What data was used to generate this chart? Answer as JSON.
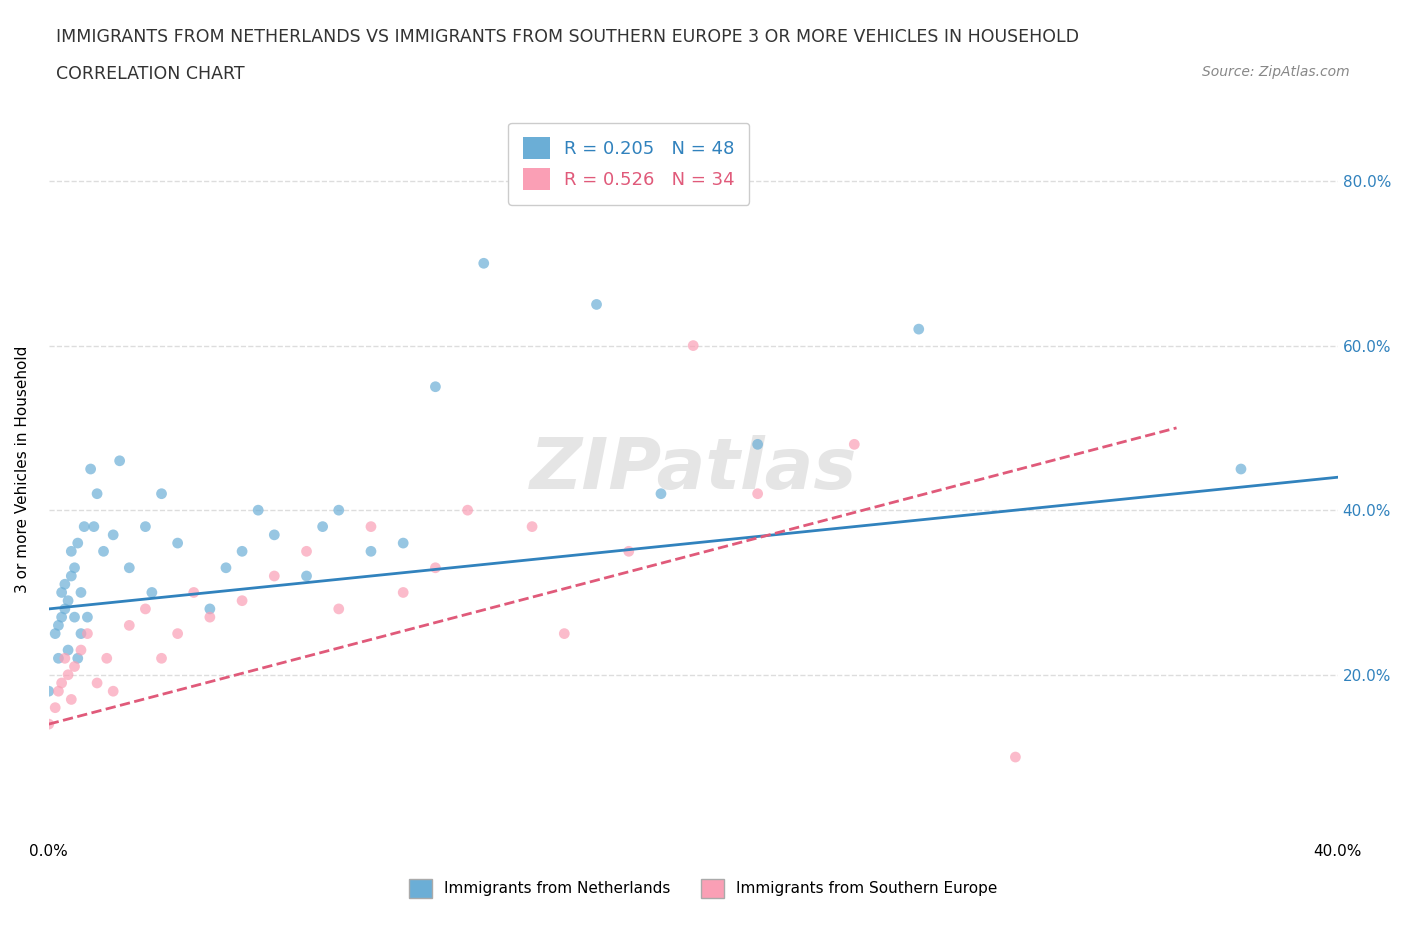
{
  "title_line1": "IMMIGRANTS FROM NETHERLANDS VS IMMIGRANTS FROM SOUTHERN EUROPE 3 OR MORE VEHICLES IN HOUSEHOLD",
  "title_line2": "CORRELATION CHART",
  "source_text": "Source: ZipAtlas.com",
  "ylabel": "3 or more Vehicles in Household",
  "xlim": [
    0.0,
    0.4
  ],
  "ylim": [
    0.0,
    0.9
  ],
  "x_ticks": [
    0.0,
    0.05,
    0.1,
    0.15,
    0.2,
    0.25,
    0.3,
    0.35,
    0.4
  ],
  "x_tick_labels": [
    "0.0%",
    "",
    "",
    "",
    "",
    "",
    "",
    "",
    "40.0%"
  ],
  "y_ticks": [
    0.0,
    0.2,
    0.4,
    0.6,
    0.8
  ],
  "y_tick_labels_right": [
    "",
    "20.0%",
    "40.0%",
    "60.0%",
    "80.0%"
  ],
  "blue_color": "#6baed6",
  "pink_color": "#fa9fb5",
  "blue_line_color": "#3182bd",
  "pink_line_color": "#e05a7a",
  "watermark_color": "#cccccc",
  "legend_R_blue": "R = 0.205",
  "legend_N_blue": "N = 48",
  "legend_R_pink": "R = 0.526",
  "legend_N_pink": "N = 34",
  "blue_scatter_x": [
    0.0,
    0.002,
    0.003,
    0.003,
    0.004,
    0.004,
    0.005,
    0.005,
    0.006,
    0.006,
    0.007,
    0.007,
    0.008,
    0.008,
    0.009,
    0.009,
    0.01,
    0.01,
    0.011,
    0.012,
    0.013,
    0.014,
    0.015,
    0.017,
    0.02,
    0.022,
    0.025,
    0.03,
    0.032,
    0.035,
    0.04,
    0.05,
    0.055,
    0.06,
    0.065,
    0.07,
    0.08,
    0.085,
    0.09,
    0.1,
    0.11,
    0.12,
    0.135,
    0.17,
    0.19,
    0.22,
    0.27,
    0.37
  ],
  "blue_scatter_y": [
    0.18,
    0.25,
    0.22,
    0.26,
    0.27,
    0.3,
    0.28,
    0.31,
    0.23,
    0.29,
    0.32,
    0.35,
    0.27,
    0.33,
    0.22,
    0.36,
    0.25,
    0.3,
    0.38,
    0.27,
    0.45,
    0.38,
    0.42,
    0.35,
    0.37,
    0.46,
    0.33,
    0.38,
    0.3,
    0.42,
    0.36,
    0.28,
    0.33,
    0.35,
    0.4,
    0.37,
    0.32,
    0.38,
    0.4,
    0.35,
    0.36,
    0.55,
    0.7,
    0.65,
    0.42,
    0.48,
    0.62,
    0.45
  ],
  "pink_scatter_x": [
    0.0,
    0.002,
    0.003,
    0.004,
    0.005,
    0.006,
    0.007,
    0.008,
    0.01,
    0.012,
    0.015,
    0.018,
    0.02,
    0.025,
    0.03,
    0.035,
    0.04,
    0.045,
    0.05,
    0.06,
    0.07,
    0.08,
    0.09,
    0.1,
    0.11,
    0.12,
    0.13,
    0.15,
    0.16,
    0.18,
    0.2,
    0.22,
    0.25,
    0.3
  ],
  "pink_scatter_y": [
    0.14,
    0.16,
    0.18,
    0.19,
    0.22,
    0.2,
    0.17,
    0.21,
    0.23,
    0.25,
    0.19,
    0.22,
    0.18,
    0.26,
    0.28,
    0.22,
    0.25,
    0.3,
    0.27,
    0.29,
    0.32,
    0.35,
    0.28,
    0.38,
    0.3,
    0.33,
    0.4,
    0.38,
    0.25,
    0.35,
    0.6,
    0.42,
    0.48,
    0.1
  ],
  "blue_trend_x": [
    0.0,
    0.4
  ],
  "blue_trend_y": [
    0.28,
    0.44
  ],
  "pink_trend_x": [
    0.0,
    0.35
  ],
  "pink_trend_y": [
    0.14,
    0.5
  ],
  "grid_color": "#dddddd",
  "bg_color": "#ffffff",
  "hline_y": [
    0.2,
    0.4,
    0.6,
    0.8
  ]
}
